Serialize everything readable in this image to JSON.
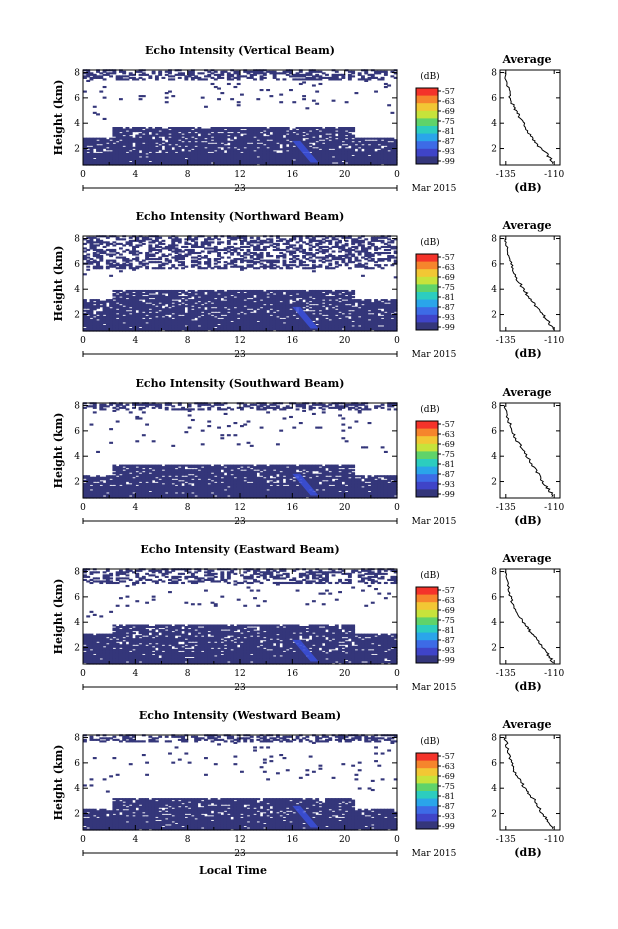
{
  "chart_data": [
    {
      "type": "heatmap",
      "title": "Echo Intensity (Vertical Beam)",
      "ylabel": "Height (km)",
      "xticks": [
        "0",
        "4",
        "8",
        "12",
        "16",
        "20",
        "0"
      ],
      "yticks": [
        "2",
        "4",
        "6",
        "8"
      ],
      "date_day": "23",
      "date_label": "Mar 2015",
      "xlim": [
        0,
        24
      ],
      "ylim": [
        0.7,
        8.2
      ],
      "colorbar": {
        "label": "(dB)",
        "ticks": [
          "-57",
          "-63",
          "-69",
          "-75",
          "-81",
          "-87",
          "-93",
          "-99"
        ]
      },
      "average": {
        "title": "Average",
        "xlabel": "(dB)",
        "xticks": [
          "-135",
          "-110"
        ],
        "xlim": [
          -138,
          -107
        ],
        "yticks": [
          "2",
          "4",
          "6",
          "8"
        ],
        "profile": [
          [
            -110.5,
            0.8
          ],
          [
            -112,
            1.2
          ],
          [
            -114,
            1.6
          ],
          [
            -117,
            2.0
          ],
          [
            -119,
            2.4
          ],
          [
            -121,
            2.8
          ],
          [
            -123,
            3.2
          ],
          [
            -124.5,
            3.6
          ],
          [
            -126,
            4.0
          ],
          [
            -127.5,
            4.4
          ],
          [
            -129,
            4.8
          ],
          [
            -130.5,
            5.2
          ],
          [
            -132,
            5.7
          ],
          [
            -133,
            6.2
          ],
          [
            -133.5,
            6.8
          ],
          [
            -134.5,
            7.4
          ],
          [
            -135.5,
            8.0
          ]
        ]
      },
      "fill": {
        "low_top": 3.7,
        "low_top_early": 2.8,
        "upper_min": 7.4
      }
    },
    {
      "type": "heatmap",
      "title": "Echo Intensity (Northward Beam)",
      "ylabel": "Height (km)",
      "xticks": [
        "0",
        "4",
        "8",
        "12",
        "16",
        "20",
        "0"
      ],
      "yticks": [
        "2",
        "4",
        "6",
        "8"
      ],
      "date_day": "23",
      "date_label": "Mar 2015",
      "xlim": [
        0,
        24
      ],
      "ylim": [
        0.7,
        8.2
      ],
      "colorbar": {
        "label": "(dB)",
        "ticks": [
          "-57",
          "-63",
          "-69",
          "-75",
          "-81",
          "-87",
          "-93",
          "-99"
        ]
      },
      "average": {
        "title": "Average",
        "xlabel": "(dB)",
        "xticks": [
          "-135",
          "-110"
        ],
        "xlim": [
          -138,
          -107
        ],
        "yticks": [
          "2",
          "4",
          "6",
          "8"
        ],
        "profile": [
          [
            -110.5,
            0.8
          ],
          [
            -112,
            1.2
          ],
          [
            -114,
            1.6
          ],
          [
            -116,
            2.0
          ],
          [
            -118,
            2.4
          ],
          [
            -120,
            2.8
          ],
          [
            -122,
            3.2
          ],
          [
            -124,
            3.6
          ],
          [
            -126,
            4.0
          ],
          [
            -128,
            4.5
          ],
          [
            -130,
            5.0
          ],
          [
            -131,
            5.5
          ],
          [
            -132,
            6.0
          ],
          [
            -133,
            6.5
          ],
          [
            -134,
            7.0
          ],
          [
            -135,
            7.6
          ],
          [
            -135.5,
            8.0
          ]
        ]
      },
      "fill": {
        "low_top": 3.9,
        "low_top_early": 3.2,
        "upper_min": 5.6
      }
    },
    {
      "type": "heatmap",
      "title": "Echo Intensity (Southward Beam)",
      "ylabel": "Height (km)",
      "xticks": [
        "0",
        "4",
        "8",
        "12",
        "16",
        "20",
        "0"
      ],
      "yticks": [
        "2",
        "4",
        "6",
        "8"
      ],
      "date_day": "23",
      "date_label": "Mar 2015",
      "xlim": [
        0,
        24
      ],
      "ylim": [
        0.7,
        8.2
      ],
      "colorbar": {
        "label": "(dB)",
        "ticks": [
          "-57",
          "-63",
          "-69",
          "-75",
          "-81",
          "-87",
          "-93",
          "-99"
        ]
      },
      "average": {
        "title": "Average",
        "xlabel": "(dB)",
        "xticks": [
          "-135",
          "-110"
        ],
        "xlim": [
          -138,
          -107
        ],
        "yticks": [
          "2",
          "4",
          "6",
          "8"
        ],
        "profile": [
          [
            -110.5,
            0.8
          ],
          [
            -112,
            1.2
          ],
          [
            -114,
            1.6
          ],
          [
            -116,
            2.0
          ],
          [
            -118,
            2.5
          ],
          [
            -120,
            3.0
          ],
          [
            -122,
            3.5
          ],
          [
            -124,
            4.0
          ],
          [
            -126,
            4.5
          ],
          [
            -128,
            5.0
          ],
          [
            -130,
            5.4
          ],
          [
            -131.5,
            5.8
          ],
          [
            -132.5,
            6.3
          ],
          [
            -133.5,
            6.8
          ],
          [
            -134.5,
            7.4
          ],
          [
            -135.5,
            8.0
          ]
        ]
      },
      "fill": {
        "low_top": 3.3,
        "low_top_early": 2.5,
        "upper_min": 7.6
      }
    },
    {
      "type": "heatmap",
      "title": "Echo Intensity (Eastward Beam)",
      "ylabel": "Height (km)",
      "xticks": [
        "0",
        "4",
        "8",
        "12",
        "16",
        "20",
        "0"
      ],
      "yticks": [
        "2",
        "4",
        "6",
        "8"
      ],
      "date_day": "23",
      "date_label": "Mar 2015",
      "xlim": [
        0,
        24
      ],
      "ylim": [
        0.7,
        8.2
      ],
      "colorbar": {
        "label": "(dB)",
        "ticks": [
          "-57",
          "-63",
          "-69",
          "-75",
          "-81",
          "-87",
          "-93",
          "-99"
        ]
      },
      "average": {
        "title": "Average",
        "xlabel": "(dB)",
        "xticks": [
          "-135",
          "-110"
        ],
        "xlim": [
          -138,
          -107
        ],
        "yticks": [
          "2",
          "4",
          "6",
          "8"
        ],
        "profile": [
          [
            -110.5,
            0.8
          ],
          [
            -112,
            1.2
          ],
          [
            -114,
            1.6
          ],
          [
            -116,
            2.0
          ],
          [
            -118,
            2.4
          ],
          [
            -120,
            2.8
          ],
          [
            -122,
            3.2
          ],
          [
            -124,
            3.6
          ],
          [
            -126,
            4.0
          ],
          [
            -128,
            4.5
          ],
          [
            -130,
            5.0
          ],
          [
            -131.5,
            5.5
          ],
          [
            -132.5,
            6.0
          ],
          [
            -133.5,
            6.6
          ],
          [
            -134.5,
            7.2
          ],
          [
            -135.5,
            8.0
          ]
        ]
      },
      "fill": {
        "low_top": 3.8,
        "low_top_early": 3.0,
        "upper_min": 7.0
      }
    },
    {
      "type": "heatmap",
      "title": "Echo Intensity (Westward Beam)",
      "ylabel": "Height (km)",
      "xticks": [
        "0",
        "4",
        "8",
        "12",
        "16",
        "20",
        "0"
      ],
      "yticks": [
        "2",
        "4",
        "6",
        "8"
      ],
      "date_day": "23",
      "date_label": "Mar 2015",
      "xlim": [
        0,
        24
      ],
      "ylim": [
        0.7,
        8.2
      ],
      "xlabel": "Local Time",
      "colorbar": {
        "label": "(dB)",
        "ticks": [
          "-57",
          "-63",
          "-69",
          "-75",
          "-81",
          "-87",
          "-93",
          "-99"
        ]
      },
      "average": {
        "title": "Average",
        "xlabel": "(dB)",
        "xticks": [
          "-135",
          "-110"
        ],
        "xlim": [
          -138,
          -107
        ],
        "yticks": [
          "2",
          "4",
          "6",
          "8"
        ],
        "profile": [
          [
            -110.5,
            0.8
          ],
          [
            -112,
            1.2
          ],
          [
            -114,
            1.6
          ],
          [
            -116,
            2.0
          ],
          [
            -118,
            2.5
          ],
          [
            -120,
            3.0
          ],
          [
            -122,
            3.4
          ],
          [
            -124,
            3.8
          ],
          [
            -126,
            4.2
          ],
          [
            -128,
            4.7
          ],
          [
            -130,
            5.2
          ],
          [
            -131.5,
            5.7
          ],
          [
            -132.5,
            6.2
          ],
          [
            -133.5,
            6.8
          ],
          [
            -134.5,
            7.4
          ],
          [
            -135.5,
            8.0
          ]
        ]
      },
      "fill": {
        "low_top": 3.2,
        "low_top_early": 2.3,
        "upper_min": 7.6
      }
    }
  ],
  "colors": {
    "navy": "#34367a",
    "blue": "#3a4fd6",
    "colorbar_stops": [
      "#f4332a",
      "#f6852c",
      "#f2c734",
      "#c7e33b",
      "#5fd36a",
      "#2ccdbf",
      "#2aa5ea",
      "#3d6be6",
      "#3f44c8",
      "#34367a"
    ]
  }
}
